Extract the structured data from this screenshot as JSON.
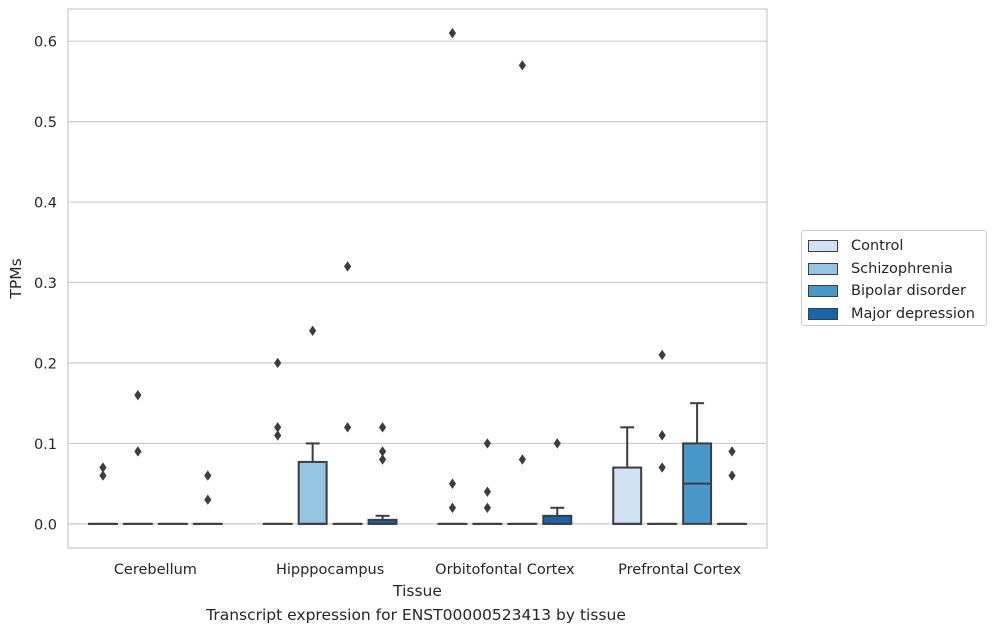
{
  "chart_data": {
    "type": "box",
    "title": "",
    "xlabel": "Tissue",
    "ylabel": "TPMs",
    "caption": "Transcript expression for ENST00000523413 by tissue",
    "ylim": [
      -0.03,
      0.64
    ],
    "yticks": [
      0.0,
      0.1,
      0.2,
      0.3,
      0.4,
      0.5,
      0.6
    ],
    "ytick_labels": [
      "0.0",
      "0.1",
      "0.2",
      "0.3",
      "0.4",
      "0.5",
      "0.6"
    ],
    "grid": true,
    "legend_position": "right",
    "categories": [
      "Cerebellum",
      "Hipppocampus",
      "Orbitofontal Cortex",
      "Prefrontal Cortex"
    ],
    "series": [
      {
        "name": "Control",
        "color": "#d0e1f2",
        "boxes": [
          {
            "q1": 0,
            "median": 0,
            "q3": 0,
            "whisker_low": 0,
            "whisker_high": 0,
            "outliers": [
              0.06,
              0.07
            ]
          },
          {
            "q1": 0,
            "median": 0,
            "q3": 0,
            "whisker_low": 0,
            "whisker_high": 0,
            "outliers": [
              0.11,
              0.12,
              0.2
            ]
          },
          {
            "q1": 0,
            "median": 0,
            "q3": 0,
            "whisker_low": 0,
            "whisker_high": 0,
            "outliers": [
              0.02,
              0.05,
              0.61
            ]
          },
          {
            "q1": 0,
            "median": 0,
            "q3": 0.07,
            "whisker_low": 0,
            "whisker_high": 0.12,
            "outliers": []
          }
        ]
      },
      {
        "name": "Schizophrenia",
        "color": "#94c4df",
        "boxes": [
          {
            "q1": 0,
            "median": 0,
            "q3": 0,
            "whisker_low": 0,
            "whisker_high": 0,
            "outliers": [
              0.09,
              0.16
            ]
          },
          {
            "q1": 0,
            "median": 0,
            "q3": 0.077,
            "whisker_low": 0,
            "whisker_high": 0.1,
            "outliers": [
              0.24
            ]
          },
          {
            "q1": 0,
            "median": 0,
            "q3": 0,
            "whisker_low": 0,
            "whisker_high": 0,
            "outliers": [
              0.02,
              0.04,
              0.1
            ]
          },
          {
            "q1": 0,
            "median": 0,
            "q3": 0,
            "whisker_low": 0,
            "whisker_high": 0,
            "outliers": [
              0.07,
              0.11,
              0.21
            ]
          }
        ]
      },
      {
        "name": "Bipolar disorder",
        "color": "#4a98c9",
        "boxes": [
          {
            "q1": 0,
            "median": 0,
            "q3": 0,
            "whisker_low": 0,
            "whisker_high": 0,
            "outliers": []
          },
          {
            "q1": 0,
            "median": 0,
            "q3": 0,
            "whisker_low": 0,
            "whisker_high": 0,
            "outliers": [
              0.12,
              0.32
            ]
          },
          {
            "q1": 0,
            "median": 0,
            "q3": 0,
            "whisker_low": 0,
            "whisker_high": 0,
            "outliers": [
              0.08,
              0.57
            ]
          },
          {
            "q1": 0,
            "median": 0.05,
            "q3": 0.1,
            "whisker_low": 0,
            "whisker_high": 0.15,
            "outliers": []
          }
        ]
      },
      {
        "name": "Major depression",
        "color": "#1764ab",
        "boxes": [
          {
            "q1": 0,
            "median": 0,
            "q3": 0,
            "whisker_low": 0,
            "whisker_high": 0,
            "outliers": [
              0.03,
              0.06
            ]
          },
          {
            "q1": 0,
            "median": 0,
            "q3": 0.005,
            "whisker_low": 0,
            "whisker_high": 0.01,
            "outliers": [
              0.08,
              0.09,
              0.12
            ]
          },
          {
            "q1": 0,
            "median": 0,
            "q3": 0.01,
            "whisker_low": 0,
            "whisker_high": 0.02,
            "outliers": [
              0.1
            ]
          },
          {
            "q1": 0,
            "median": 0,
            "q3": 0,
            "whisker_low": 0,
            "whisker_high": 0,
            "outliers": [
              0.06,
              0.09
            ]
          }
        ]
      }
    ]
  }
}
